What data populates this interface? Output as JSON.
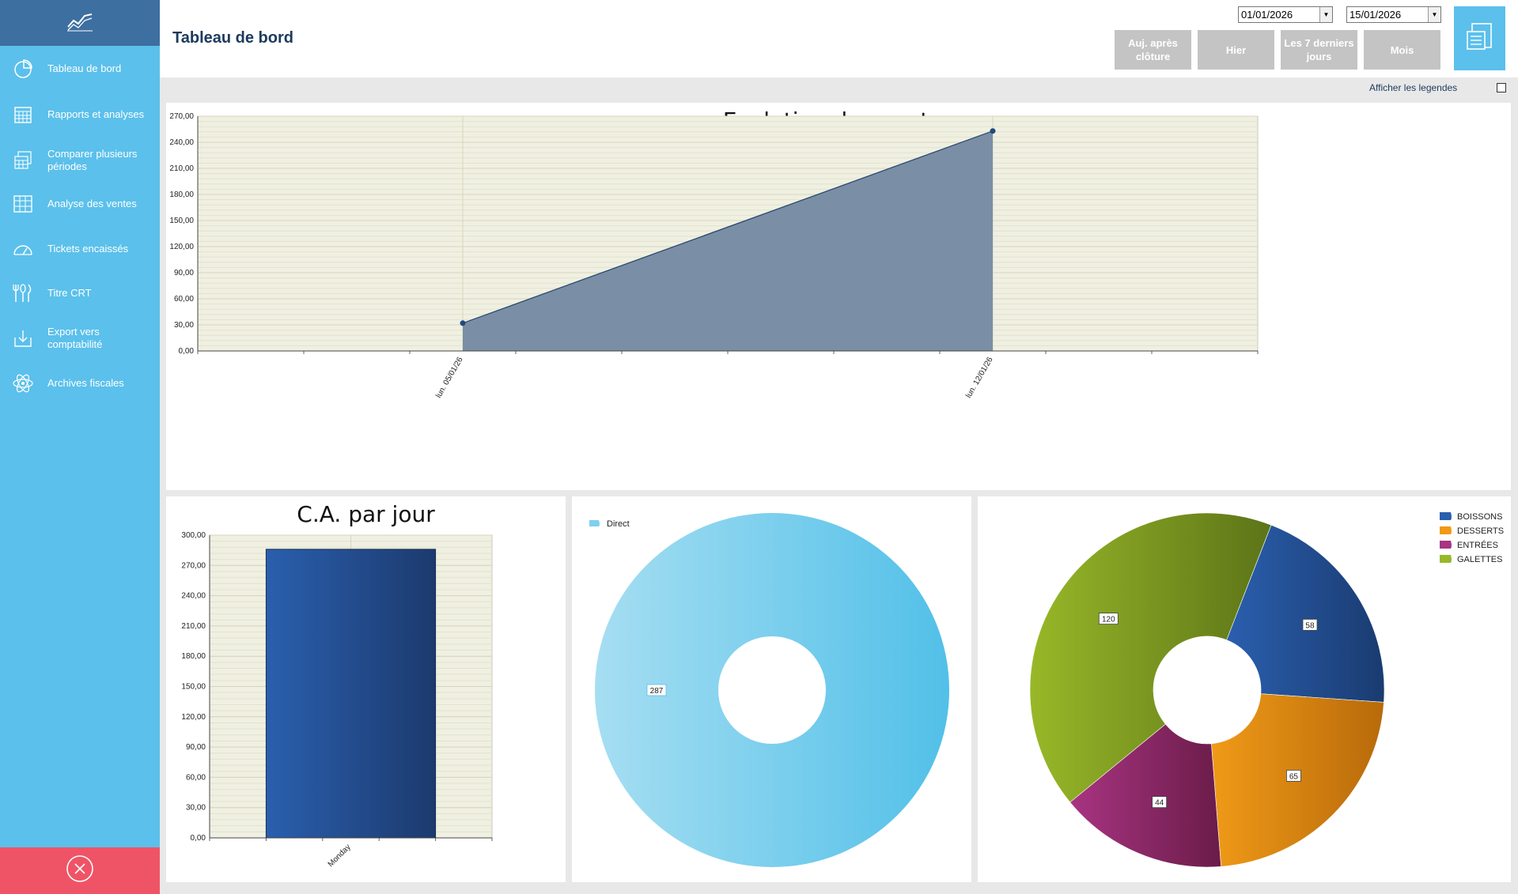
{
  "sidebar": {
    "items": [
      {
        "label": "Tableau de bord",
        "icon": "pie-chart-icon"
      },
      {
        "label": "Rapports et analyses",
        "icon": "calendar-icon"
      },
      {
        "label": "Comparer plusieurs périodes",
        "icon": "calendar-compare-icon"
      },
      {
        "label": "Analyse des ventes",
        "icon": "grid-icon"
      },
      {
        "label": "Tickets encaissés",
        "icon": "gauge-icon"
      },
      {
        "label": "Titre CRT",
        "icon": "cutlery-icon"
      },
      {
        "label": "Export vers comptabilité",
        "icon": "download-tray-icon"
      },
      {
        "label": "Archives fiscales",
        "icon": "atom-icon"
      }
    ],
    "logo_icon": "trend-line-icon",
    "close_icon": "close-circle-icon"
  },
  "header": {
    "title": "Tableau de bord",
    "date_from": "01/01/2026",
    "date_to": "15/01/2026",
    "buttons": {
      "today": "Auj. après clôture",
      "yesterday": "Hier",
      "last7": "Les 7 derniers jours",
      "month": "Mois"
    },
    "print_icon": "print-report-icon"
  },
  "legend_toggle": {
    "label": "Afficher les legendes",
    "checked": false
  },
  "colors": {
    "sidebar": "#5bc0eb",
    "sidebar_top": "#3d6fa0",
    "close": "#ef5466",
    "area": "#7a8ea6",
    "bar": "#245ca6",
    "donut1": "#7dd0ee",
    "boissons": "#1f4f90",
    "desserts": "#e08a14",
    "entrees": "#8f2a6a",
    "galettes": "#7a9c24"
  },
  "chart_data": [
    {
      "type": "area",
      "title": "Evolution des ventes",
      "categories": [
        "lun. 05/01/26",
        "lun. 12/01/26"
      ],
      "values": [
        32,
        253
      ],
      "ylim": [
        0,
        270
      ],
      "yticks": [
        "0,00",
        "30,00",
        "60,00",
        "90,00",
        "120,00",
        "150,00",
        "180,00",
        "210,00",
        "240,00",
        "270,00"
      ],
      "grid": true
    },
    {
      "type": "bar",
      "title": "C.A. par jour",
      "categories": [
        "Monday"
      ],
      "values": [
        286
      ],
      "ylim": [
        0,
        300
      ],
      "yticks": [
        "0,00",
        "30,00",
        "60,00",
        "90,00",
        "120,00",
        "150,00",
        "180,00",
        "210,00",
        "240,00",
        "270,00",
        "300,00"
      ],
      "grid": true
    },
    {
      "type": "pie",
      "series": [
        {
          "name": "Direct",
          "values": [
            287
          ]
        }
      ],
      "labels": [
        "Direct"
      ],
      "values": [
        287
      ],
      "legend": "top-left"
    },
    {
      "type": "pie",
      "labels": [
        "BOISSONS",
        "DESSERTS",
        "ENTRÉES",
        "GALETTES"
      ],
      "values": [
        58,
        65,
        44,
        120
      ],
      "legend": "top-right"
    }
  ]
}
